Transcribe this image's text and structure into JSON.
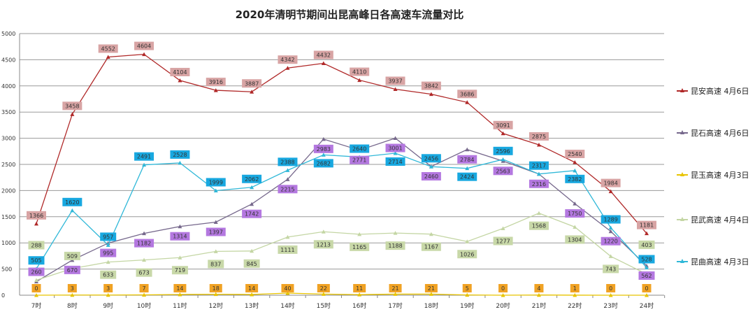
{
  "chart_data": {
    "type": "line",
    "title": "2020年清明节期间出昆高峰日各高速车流量对比",
    "categories": [
      "7时",
      "8时",
      "9时",
      "10时",
      "11时",
      "12时",
      "13时",
      "14时",
      "15时",
      "16时",
      "17时",
      "18时",
      "19时",
      "20时",
      "21时",
      "22时",
      "23时",
      "24时"
    ],
    "ylim": [
      0,
      5000
    ],
    "yticks": [
      0,
      500,
      1000,
      1500,
      2000,
      2500,
      3000,
      3500,
      4000,
      4500,
      5000
    ],
    "grid": true,
    "legend_position": "right",
    "series": [
      {
        "name": "昆安高速 4月6日",
        "color": "#b02828",
        "label_bg": "#d8a4a4",
        "values": [
          1366,
          3458,
          4552,
          4604,
          4104,
          3916,
          3887,
          4342,
          4432,
          4110,
          3937,
          3842,
          3686,
          3091,
          2875,
          2540,
          1984,
          1181
        ]
      },
      {
        "name": "昆石高速 4月6日",
        "color": "#76688c",
        "label_bg": "#b478e0",
        "values": [
          260,
          670,
          995,
          1182,
          1314,
          1397,
          1742,
          2215,
          2983,
          2771,
          3001,
          2460,
          2784,
          2563,
          2316,
          1750,
          1220,
          562
        ]
      },
      {
        "name": "昆玉高速 4月3日",
        "color": "#e8c400",
        "label_bg": "#f0a224",
        "values": [
          0,
          3,
          3,
          7,
          14,
          18,
          14,
          40,
          22,
          11,
          21,
          21,
          5,
          0,
          4,
          1,
          0,
          0
        ]
      },
      {
        "name": "昆武高速 4月4日",
        "color": "#c4d6a4",
        "label_bg": "#c8d8a8",
        "values": [
          288,
          509,
          633,
          673,
          719,
          837,
          845,
          1111,
          1213,
          1165,
          1188,
          1167,
          1026,
          1277,
          1568,
          1304,
          743,
          403
        ]
      },
      {
        "name": "昆曲高速 4月3日",
        "color": "#30b8d8",
        "label_bg": "#18a8e0",
        "values": [
          505,
          1620,
          957,
          2491,
          2528,
          1999,
          2062,
          2388,
          2682,
          2640,
          2714,
          2456,
          2424,
          2596,
          2317,
          2382,
          1289,
          528
        ]
      }
    ]
  }
}
